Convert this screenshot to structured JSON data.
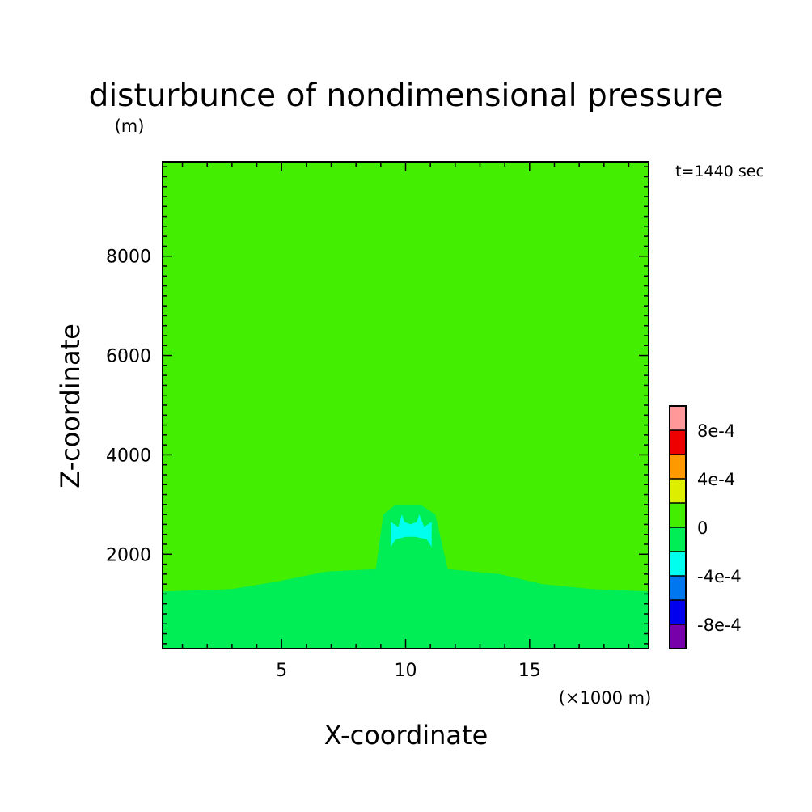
{
  "chart_data": {
    "type": "heatmap",
    "title": "disturbunce of nondimensional pressure",
    "y_unit_label": "(m)",
    "time_label": "t=1440 sec",
    "xlabel": "X-coordinate",
    "x_unit_label": "(×1000 m)",
    "ylabel": "Z-coordinate",
    "xlim": [
      0.2,
      19.8
    ],
    "ylim": [
      100,
      9900
    ],
    "x_major_ticks": [
      5,
      10,
      15
    ],
    "x_tick_labels": [
      "5",
      "10",
      "15"
    ],
    "x_minor_step": 1,
    "y_major_ticks": [
      2000,
      4000,
      6000,
      8000
    ],
    "y_tick_labels": [
      "2000",
      "4000",
      "6000",
      "8000"
    ],
    "y_minor_step": 200,
    "background_level_color": "#44ee00",
    "colorbar": {
      "levels": [
        -0.001,
        -0.0008,
        -0.0006,
        -0.0004,
        -0.0002,
        0,
        0.0002,
        0.0004,
        0.0006,
        0.0008,
        0.001
      ],
      "colors": [
        "#7700aa",
        "#0000ee",
        "#0077ee",
        "#00ffee",
        "#00ee55",
        "#44ee00",
        "#ddee00",
        "#ff9900",
        "#ee0000",
        "#ff9999"
      ],
      "tick_labels": [
        "-8e-4",
        "-4e-4",
        "0",
        "4e-4",
        "8e-4"
      ],
      "tick_values": [
        -0.0008,
        -0.0004,
        0,
        0.0004,
        0.0008
      ]
    },
    "regions": [
      {
        "level_color": "#00ee55",
        "range": [
          -0.0002,
          0
        ],
        "outline": [
          [
            0.2,
            100
          ],
          [
            0.2,
            1250
          ],
          [
            3.0,
            1300
          ],
          [
            4.8,
            1450
          ],
          [
            6.8,
            1650
          ],
          [
            8.8,
            1700
          ],
          [
            9.1,
            2800
          ],
          [
            9.6,
            3000
          ],
          [
            10.6,
            3000
          ],
          [
            11.2,
            2800
          ],
          [
            11.7,
            1700
          ],
          [
            13.8,
            1600
          ],
          [
            15.5,
            1400
          ],
          [
            17.5,
            1300
          ],
          [
            19.8,
            1250
          ],
          [
            19.8,
            100
          ]
        ]
      },
      {
        "level_color": "#00ffee",
        "range": [
          -0.0004,
          -0.0002
        ],
        "outline": [
          [
            9.4,
            2150
          ],
          [
            9.4,
            2650
          ],
          [
            9.7,
            2550
          ],
          [
            9.85,
            2800
          ],
          [
            9.95,
            2650
          ],
          [
            10.2,
            2600
          ],
          [
            10.45,
            2650
          ],
          [
            10.55,
            2800
          ],
          [
            10.75,
            2550
          ],
          [
            11.05,
            2650
          ],
          [
            11.05,
            2150
          ],
          [
            10.85,
            2300
          ],
          [
            10.4,
            2350
          ],
          [
            10.0,
            2350
          ],
          [
            9.6,
            2300
          ]
        ]
      }
    ]
  }
}
